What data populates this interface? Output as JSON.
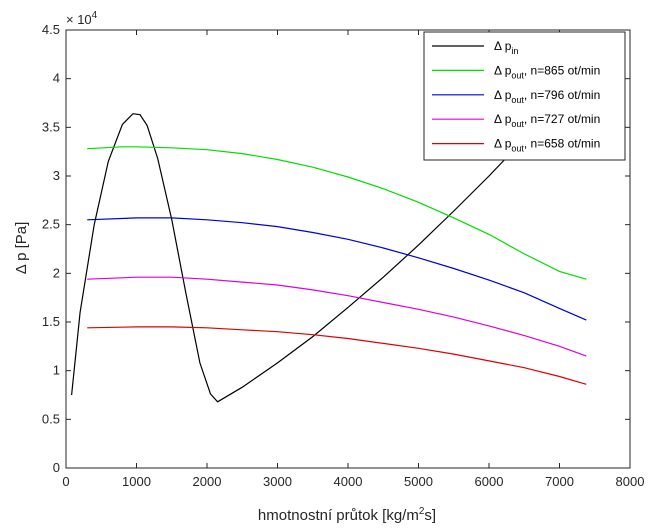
{
  "chart_data": {
    "type": "line",
    "xlabel_main": "hmotnostní průtok [kg/m",
    "xlabel_sup": "2",
    "xlabel_end": "s]",
    "ylabel": "Δ p [Pa]",
    "y_exponent_base": "× 10",
    "y_exponent_power": "4",
    "xlim": [
      0,
      8000
    ],
    "ylim": [
      0,
      45000
    ],
    "x_ticks": [
      "0",
      "1000",
      "2000",
      "3000",
      "4000",
      "5000",
      "6000",
      "7000",
      "8000"
    ],
    "y_ticks": [
      "0",
      "0.5",
      "1",
      "1.5",
      "2",
      "2.5",
      "3",
      "3.5",
      "4",
      "4.5"
    ],
    "grid": false,
    "legend_position": "top-right",
    "series": [
      {
        "name": "Δ p",
        "sub": "in",
        "suffix": "",
        "color": "#000000",
        "x": [
          80,
          200,
          400,
          600,
          800,
          950,
          1050,
          1150,
          1300,
          1500,
          1700,
          1900,
          2050,
          2150,
          2500,
          3000,
          3500,
          4000,
          4500,
          5000,
          5500,
          6000,
          6500,
          6800,
          7000
        ],
        "y": [
          7500,
          16000,
          25000,
          31500,
          35300,
          36400,
          36300,
          35200,
          31800,
          25500,
          18000,
          10800,
          7600,
          6800,
          8300,
          10800,
          13500,
          16500,
          19600,
          22900,
          26400,
          30000,
          33800,
          36200,
          38000
        ]
      },
      {
        "name": "Δ p",
        "sub": "out",
        "suffix": ", n=865 ot/min",
        "color": "#00dd00",
        "x": [
          300,
          800,
          1000,
          1500,
          2000,
          2500,
          3000,
          3500,
          4000,
          4500,
          5000,
          5500,
          6000,
          6500,
          7000,
          7380
        ],
        "y": [
          32800,
          33000,
          33000,
          32900,
          32700,
          32300,
          31700,
          30900,
          29900,
          28700,
          27300,
          25700,
          24000,
          22000,
          20200,
          19400
        ]
      },
      {
        "name": "Δ p",
        "sub": "out",
        "suffix": ", n=796 ot/min",
        "color": "#0000dd",
        "x": [
          300,
          1000,
          1500,
          2000,
          2500,
          3000,
          3500,
          4000,
          4500,
          5000,
          5500,
          6000,
          6500,
          7000,
          7380
        ],
        "y": [
          25500,
          25700,
          25700,
          25500,
          25200,
          24800,
          24200,
          23500,
          22600,
          21600,
          20500,
          19300,
          18000,
          16400,
          15200
        ]
      },
      {
        "name": "Δ p",
        "sub": "out",
        "suffix": ", n=727 ot/min",
        "color": "#dd00dd",
        "x": [
          300,
          1000,
          1500,
          2000,
          2500,
          3000,
          3500,
          4000,
          4500,
          5000,
          5500,
          6000,
          6500,
          7000,
          7380
        ],
        "y": [
          19400,
          19600,
          19600,
          19400,
          19100,
          18800,
          18300,
          17700,
          17000,
          16300,
          15500,
          14600,
          13600,
          12500,
          11500
        ]
      },
      {
        "name": "Δ p",
        "sub": "out",
        "suffix": ", n=658 ot/min",
        "color": "#dd0000",
        "x": [
          300,
          1000,
          1500,
          2000,
          2500,
          3000,
          3500,
          4000,
          4500,
          5000,
          5500,
          6000,
          6500,
          7000,
          7380
        ],
        "y": [
          14400,
          14500,
          14500,
          14400,
          14200,
          14000,
          13700,
          13300,
          12800,
          12300,
          11700,
          11000,
          10300,
          9400,
          8600
        ]
      }
    ]
  }
}
